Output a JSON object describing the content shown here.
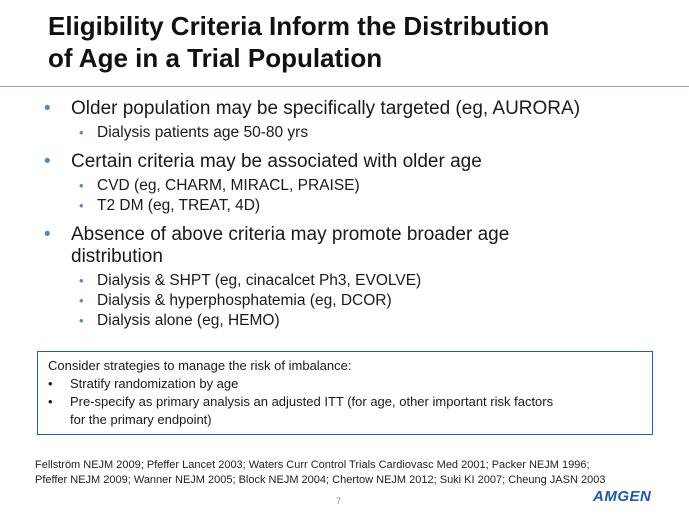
{
  "slide": {
    "title_line1": "Eligibility Criteria Inform the Distribution",
    "title_line2": "of Age in a Trial Population"
  },
  "bullets": [
    {
      "text": "Older population may be specifically targeted (eg, AURORA)",
      "sub": [
        "Dialysis patients age 50-80 yrs"
      ]
    },
    {
      "text": "Certain criteria may be associated with older age",
      "sub": [
        "CVD (eg, CHARM, MIRACL, PRAISE)",
        "T2 DM (eg, TREAT, 4D)"
      ]
    },
    {
      "text_line1": "Absence of above criteria may promote broader age",
      "text_line2": "distribution",
      "sub": [
        "Dialysis & SHPT (eg, cinacalcet Ph3, EVOLVE)",
        "Dialysis & hyperphosphatemia (eg, DCOR)",
        "Dialysis alone (eg, HEMO)"
      ]
    }
  ],
  "callout": {
    "heading": "Consider strategies to manage the risk of imbalance:",
    "items": [
      "Stratify randomization  by age",
      "Pre-specify as primary analysis an adjusted ITT (for age, other important risk factors",
      "for the primary endpoint)"
    ]
  },
  "references": {
    "line1": "Fellström NEJM 2009; Pfeffer Lancet 2003; Waters Curr Control Trials Cardiovasc Med 2001; Packer NEJM 1996;",
    "line2": "Pfeffer NEJM 2009; Wanner NEJM 2005; Block NEJM 2004; Chertow NEJM 2012; Suki KI 2007; Cheung JASN 2003"
  },
  "footer": {
    "page_number": "7",
    "logo_text": "AMGEN"
  },
  "colors": {
    "bullet": "#4d8cc8",
    "rule": "#7fa8d0",
    "callout_border": "#2a5a9a",
    "logo": "#1f5aa8"
  }
}
